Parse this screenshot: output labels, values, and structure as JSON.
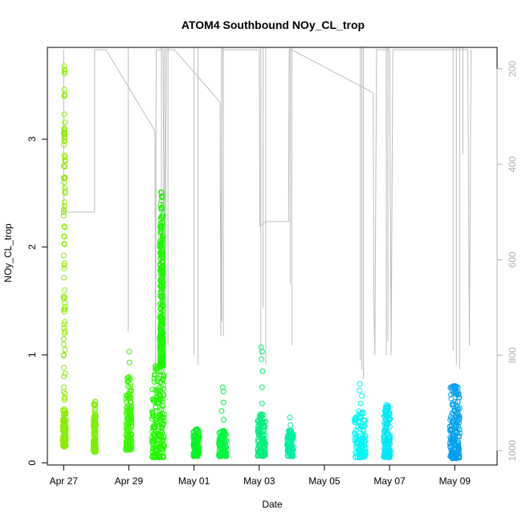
{
  "chart_data": {
    "type": "scatter",
    "title": "ATOM4 Southbound NOy_CL_trop",
    "xlabel": "Date",
    "ylabel": "NOy_CL_trop",
    "x_ticks": [
      "Apr 27",
      "Apr 29",
      "May 01",
      "May 03",
      "May 05",
      "May 07",
      "May 09"
    ],
    "x_tick_days": [
      0,
      2,
      4,
      6,
      8,
      10,
      12
    ],
    "y_ticks": [
      0,
      1,
      2,
      3
    ],
    "y_right_ticks": [
      200,
      400,
      600,
      800,
      1000
    ],
    "xlim_days": [
      -0.5,
      13.3
    ],
    "ylim": [
      -0.02,
      3.85
    ],
    "y_right_lim": [
      1030,
      155
    ],
    "y_right_reversed": true,
    "grid": false,
    "marker": "open-circle",
    "clusters": [
      {
        "day": 0.02,
        "halfwidth": 0.05,
        "ylow": 0.15,
        "yhigh": 3.7,
        "dense_top": 0.5,
        "outliers": [
          0.6,
          0.8,
          1.0,
          1.2,
          1.4,
          1.6,
          1.85,
          2.1,
          2.35,
          2.6,
          2.85,
          3.1,
          3.4
        ],
        "color": "#8cec00"
      },
      {
        "day": 0.95,
        "halfwidth": 0.04,
        "ylow": 0.1,
        "yhigh": 0.57,
        "dense_top": 0.45,
        "outliers": [],
        "color": "#7cf000"
      },
      {
        "day": 2.0,
        "halfwidth": 0.09,
        "ylow": 0.12,
        "yhigh": 0.8,
        "dense_top": 0.7,
        "outliers": [
          0.93,
          1.03
        ],
        "color": "#3cf800"
      },
      {
        "day": 2.9,
        "halfwidth": 0.19,
        "ylow": 0.05,
        "yhigh": 0.9,
        "dense_top": 0.85,
        "outliers": [],
        "color": "#22f800"
      },
      {
        "day": 3.0,
        "halfwidth": 0.05,
        "ylow": 0.9,
        "yhigh": 2.52,
        "dense_top": 2.3,
        "outliers": [],
        "color": "#1cf800"
      },
      {
        "day": 4.07,
        "halfwidth": 0.09,
        "ylow": 0.06,
        "yhigh": 0.32,
        "dense_top": 0.3,
        "outliers": [],
        "color": "#00f820"
      },
      {
        "day": 4.88,
        "halfwidth": 0.12,
        "ylow": 0.06,
        "yhigh": 0.3,
        "dense_top": 0.28,
        "outliers": [
          0.4,
          0.48,
          0.56,
          0.66,
          0.7
        ],
        "color": "#00f840"
      },
      {
        "day": 6.07,
        "halfwidth": 0.12,
        "ylow": 0.06,
        "yhigh": 0.45,
        "dense_top": 0.4,
        "outliers": [
          0.55,
          0.7,
          0.85,
          0.96,
          1.03,
          1.07
        ],
        "color": "#00f07c"
      },
      {
        "day": 6.95,
        "halfwidth": 0.1,
        "ylow": 0.06,
        "yhigh": 0.3,
        "dense_top": 0.28,
        "outliers": [
          0.35,
          0.42
        ],
        "color": "#00f0a0"
      },
      {
        "day": 9.1,
        "halfwidth": 0.17,
        "ylow": 0.05,
        "yhigh": 0.48,
        "dense_top": 0.42,
        "outliers": [
          0.55,
          0.62,
          0.67,
          0.73
        ],
        "color": "#00f8f0"
      },
      {
        "day": 9.92,
        "halfwidth": 0.1,
        "ylow": 0.05,
        "yhigh": 0.55,
        "dense_top": 0.5,
        "outliers": [],
        "color": "#00e8f8"
      },
      {
        "day": 12.0,
        "halfwidth": 0.15,
        "ylow": 0.04,
        "yhigh": 0.72,
        "dense_top": 0.7,
        "outliers": [],
        "color": "#00a0f0"
      }
    ],
    "altitude_path": [
      [
        0.0,
        160
      ],
      [
        0.0,
        240
      ],
      [
        0.0,
        500
      ],
      [
        0.95,
        500
      ],
      [
        0.95,
        160
      ],
      [
        1.3,
        160
      ],
      [
        2.8,
        330
      ],
      [
        2.82,
        860
      ],
      [
        2.84,
        160
      ],
      [
        2.9,
        160
      ],
      [
        3.05,
        160
      ],
      [
        3.1,
        860
      ],
      [
        3.15,
        160
      ],
      [
        3.4,
        160
      ],
      [
        4.8,
        270
      ],
      [
        4.82,
        760
      ],
      [
        4.86,
        160
      ],
      [
        6.0,
        160
      ],
      [
        6.02,
        530
      ],
      [
        6.2,
        520
      ],
      [
        6.9,
        520
      ],
      [
        6.92,
        160
      ],
      [
        7.0,
        160
      ],
      [
        9.5,
        250
      ],
      [
        9.52,
        700
      ],
      [
        9.55,
        800
      ],
      [
        9.6,
        160
      ],
      [
        10.0,
        160
      ],
      [
        10.05,
        800
      ],
      [
        10.1,
        160
      ],
      [
        12.4,
        160
      ],
      [
        12.45,
        780
      ],
      [
        12.5,
        160
      ]
    ],
    "altitude_spikes": [
      {
        "day": 1.98,
        "bottom": 750
      },
      {
        "day": 3.0,
        "bottom": 720
      },
      {
        "day": 3.1,
        "bottom": 840
      },
      {
        "day": 3.2,
        "bottom": 780
      },
      {
        "day": 4.0,
        "bottom": 800
      },
      {
        "day": 4.12,
        "bottom": 820
      },
      {
        "day": 4.85,
        "bottom": 730
      },
      {
        "day": 4.9,
        "bottom": 760
      },
      {
        "day": 6.05,
        "bottom": 800
      },
      {
        "day": 6.12,
        "bottom": 700
      },
      {
        "day": 6.2,
        "bottom": 820
      },
      {
        "day": 6.95,
        "bottom": 650
      },
      {
        "day": 7.0,
        "bottom": 780
      },
      {
        "day": 9.1,
        "bottom": 810
      },
      {
        "day": 9.15,
        "bottom": 830
      },
      {
        "day": 9.2,
        "bottom": 850
      },
      {
        "day": 9.9,
        "bottom": 800
      },
      {
        "day": 9.95,
        "bottom": 770
      },
      {
        "day": 11.95,
        "bottom": 790
      },
      {
        "day": 12.05,
        "bottom": 820
      },
      {
        "day": 12.15,
        "bottom": 830
      },
      {
        "day": 12.25,
        "bottom": 380
      }
    ]
  }
}
